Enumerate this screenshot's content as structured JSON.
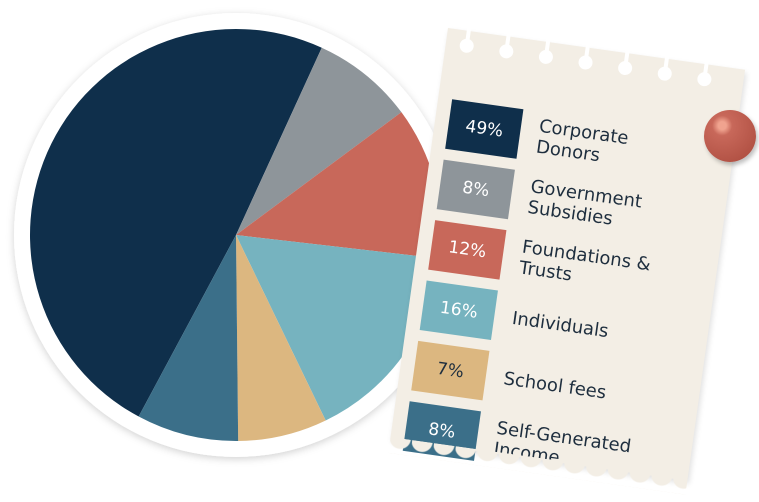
{
  "chart_data": {
    "type": "pie",
    "categories": [
      "Corporate Donors",
      "Government Subsidies",
      "Foundations & Trusts",
      "Individuals",
      "School fees",
      "Self-Generated Income"
    ],
    "values": [
      49,
      8,
      12,
      16,
      7,
      8
    ],
    "value_labels": [
      "49%",
      "8%",
      "12%",
      "16%",
      "7%",
      "8%"
    ],
    "colors": [
      "#0f2f4b",
      "#8e959a",
      "#c8685a",
      "#76b3bf",
      "#dcb780",
      "#3b6f89"
    ],
    "legend": "right"
  }
}
